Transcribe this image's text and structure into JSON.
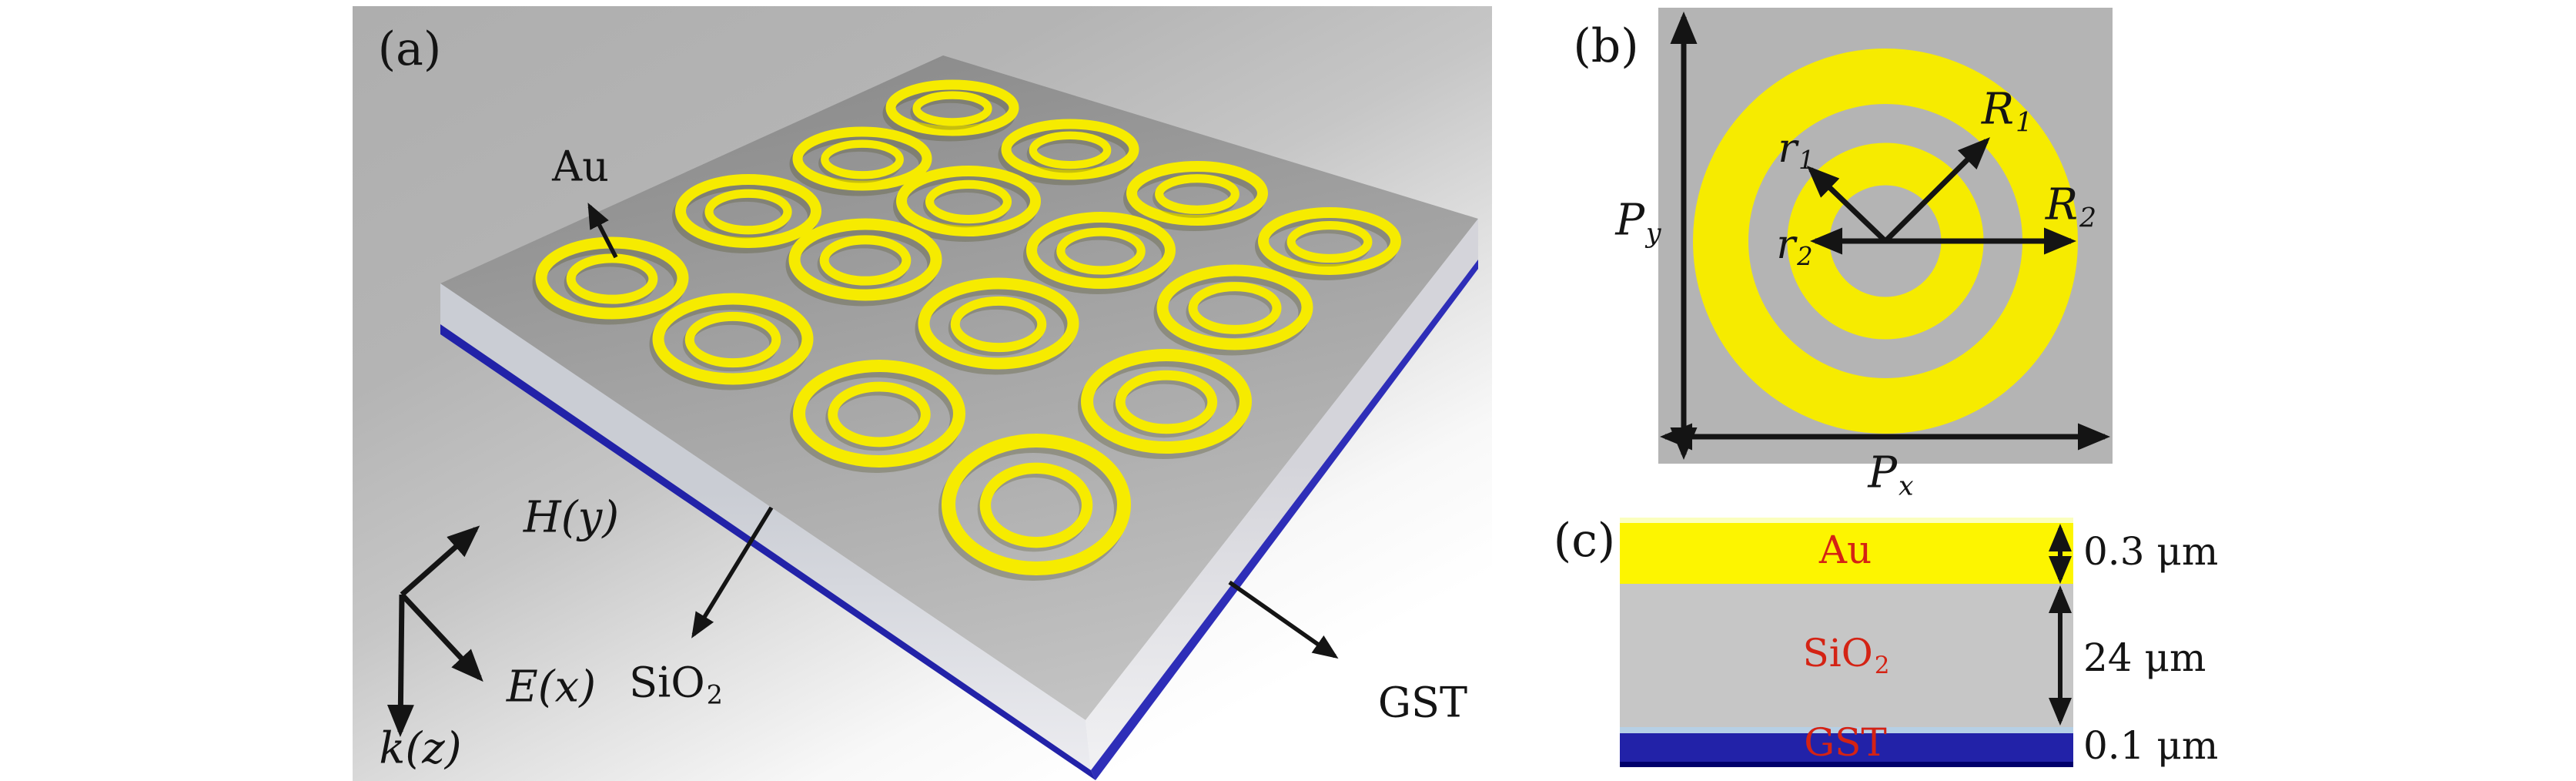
{
  "colors": {
    "gold": "#f6eb00",
    "cell_gray": "#b4b4b4",
    "sio2_gray": "#c6c6c6",
    "gst_blue": "#2222a8",
    "gst_navy": "#00006b",
    "light_blue": "#b6d0e6",
    "au_yellow": "#fdf500",
    "label_red": "#d42314"
  },
  "panel_a": {
    "label": "(a)",
    "au_label": "Au",
    "sio2_label_base": "SiO",
    "sio2_label_sub": "2",
    "gst_label": "GST",
    "axis_h_label": "H(y)",
    "axis_e_label": "E(x)",
    "axis_k_label": "k(z)",
    "ring_grid": "4x4",
    "ring_count": 16,
    "rings": [
      [
        1237,
        140,
        80,
        30,
        13
      ],
      [
        1390,
        194,
        83,
        33,
        13
      ],
      [
        1555,
        251,
        85,
        35,
        14
      ],
      [
        1727,
        313,
        86,
        37,
        14
      ],
      [
        1120,
        206,
        84,
        35,
        13
      ],
      [
        1258,
        261,
        87,
        39,
        14
      ],
      [
        1430,
        325,
        90,
        43,
        14
      ],
      [
        1604,
        399,
        94,
        48,
        15
      ],
      [
        972,
        274,
        88,
        41,
        14
      ],
      [
        1124,
        337,
        92,
        46,
        15
      ],
      [
        1297,
        420,
        97,
        52,
        15
      ],
      [
        1515,
        521,
        103,
        60,
        16
      ],
      [
        795,
        361,
        92,
        46,
        15
      ],
      [
        952,
        440,
        97,
        52,
        15
      ],
      [
        1142,
        537,
        104,
        62,
        16
      ],
      [
        1346,
        655,
        114,
        83,
        18
      ]
    ]
  },
  "panel_b": {
    "label": "(b)",
    "labels": {
      "R1": {
        "base": "R",
        "sub": "1"
      },
      "R2": {
        "base": "R",
        "sub": "2"
      },
      "r1": {
        "base": "r",
        "sub": "1"
      },
      "r2": {
        "base": "r",
        "sub": "2"
      },
      "Px": {
        "base": "P",
        "sub": "x"
      },
      "Py": {
        "base": "P",
        "sub": "y"
      }
    }
  },
  "panel_c": {
    "label": "(c)",
    "layers": [
      {
        "name_base": "Au",
        "name_sub": "",
        "thickness": "0.3 μm"
      },
      {
        "name_base": "SiO",
        "name_sub": "2",
        "thickness": "24 μm"
      },
      {
        "name_base": "GST",
        "name_sub": "",
        "thickness": "0.1 μm"
      }
    ]
  }
}
